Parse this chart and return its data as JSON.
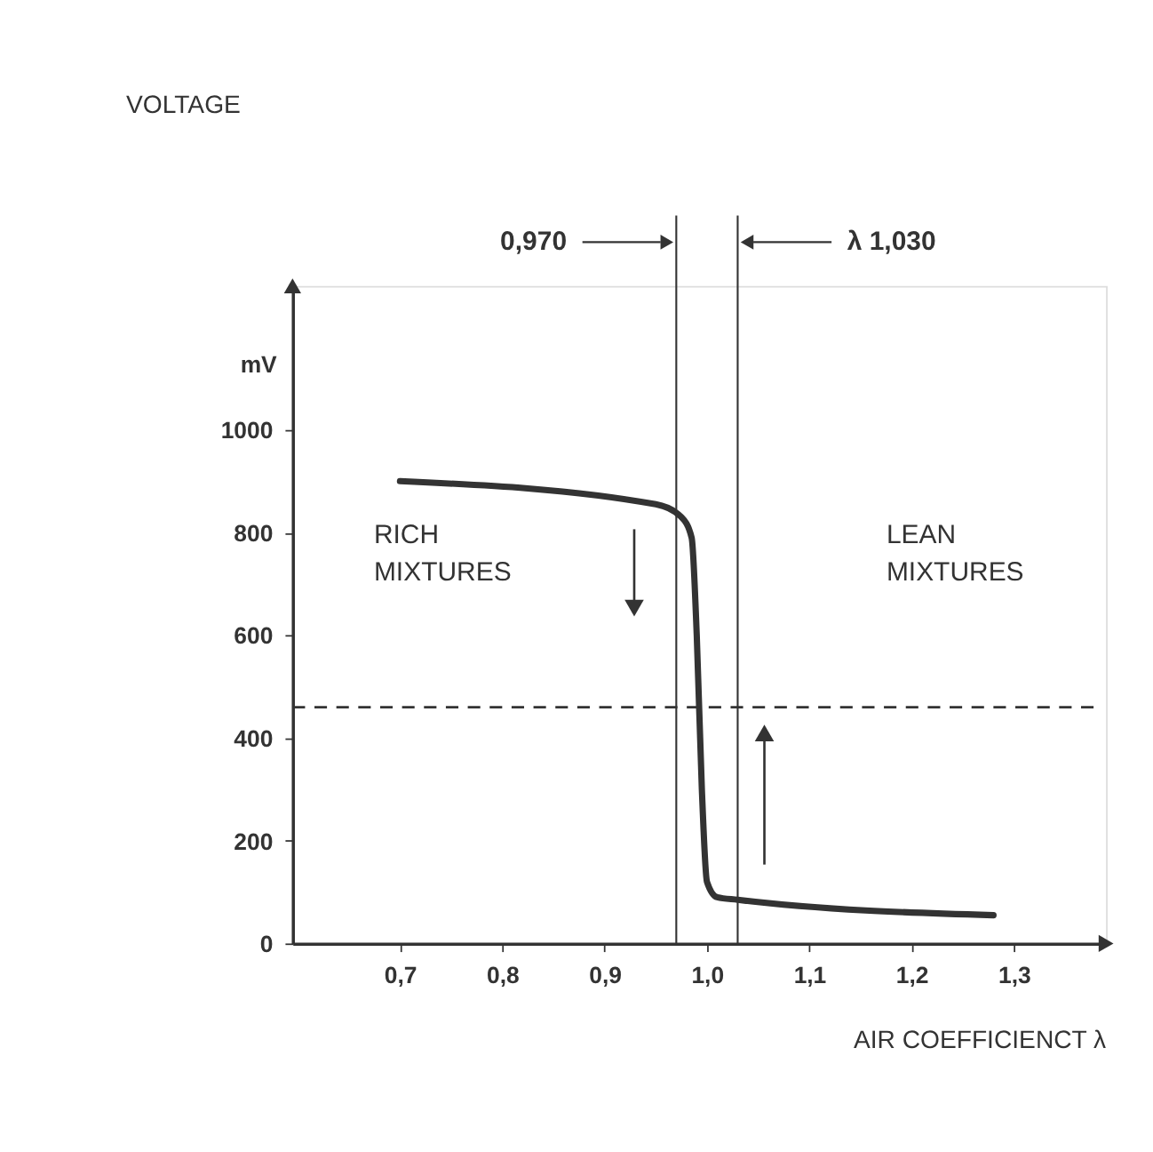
{
  "chart_data": {
    "type": "line",
    "title": "VOLTAGE",
    "ylabel": "mV",
    "xlabel": "AIR COEFFICIENCT λ",
    "x": [
      0.7,
      0.95,
      0.975,
      0.985,
      0.99,
      0.995,
      1.0,
      1.01,
      1.03,
      1.28
    ],
    "series": [
      {
        "color": "#333333",
        "values": [
          900,
          855,
          830,
          790,
          600,
          300,
          120,
          90,
          85,
          55
        ]
      }
    ],
    "xlim": [
      0.595,
      1.39
    ],
    "ylim": [
      0,
      1280
    ],
    "xticks": [
      {
        "value": 0.7,
        "label": "0,7"
      },
      {
        "value": 0.8,
        "label": "0,8"
      },
      {
        "value": 0.9,
        "label": "0,9"
      },
      {
        "value": 1.0,
        "label": "1,0"
      },
      {
        "value": 1.1,
        "label": "1,1"
      },
      {
        "value": 1.2,
        "label": "1,2"
      },
      {
        "value": 1.3,
        "label": "1,3"
      }
    ],
    "yticks": [
      0,
      200,
      400,
      600,
      800,
      1000
    ],
    "ref_lines": [
      {
        "axis": "x",
        "value": 0.97,
        "label": "0,970",
        "color": "#333333",
        "line_style": "solid"
      },
      {
        "axis": "x",
        "value": 1.03,
        "label": "λ 1,030",
        "color": "#333333",
        "line_style": "solid"
      },
      {
        "axis": "y",
        "value": 460,
        "label": null,
        "color": "#333333",
        "line_style": "dashed"
      }
    ],
    "annotations": [
      "RICH\nMIXTURES",
      "LEAN\nMIXTURES"
    ],
    "grid": false,
    "marker": "none",
    "line_style": "solid"
  }
}
